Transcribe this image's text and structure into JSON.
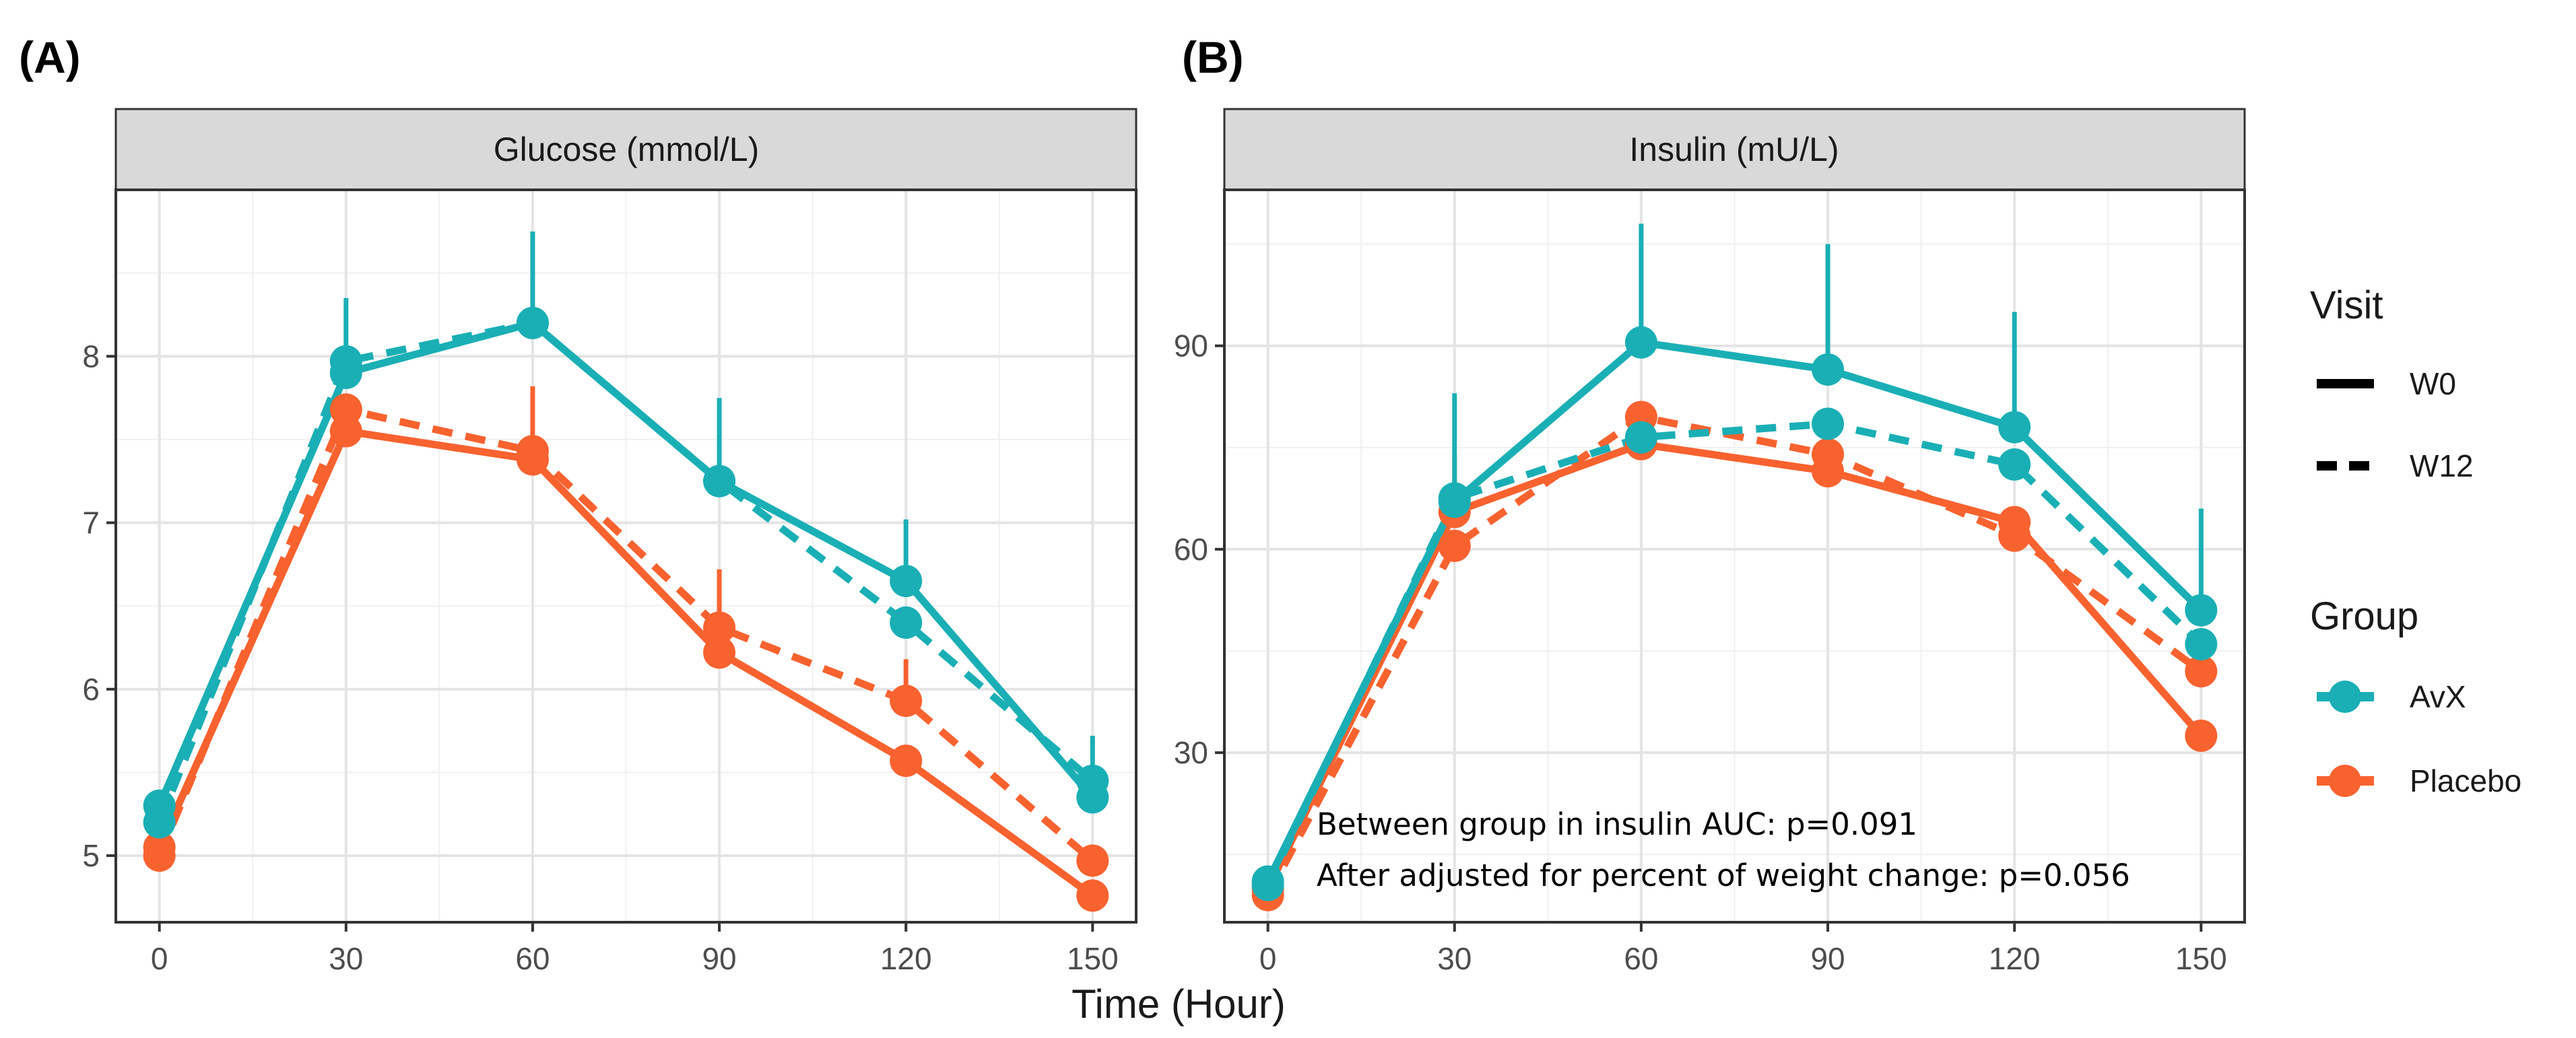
{
  "chart_data": [
    {
      "panel_label": "(A)",
      "type": "line",
      "title": "Glucose (mmol/L)",
      "x": [
        0,
        30,
        60,
        90,
        120,
        150
      ],
      "xticks": [
        "0",
        "30",
        "60",
        "90",
        "120",
        "150"
      ],
      "xlim": [
        -7,
        157
      ],
      "ylim": [
        4.6,
        9.0
      ],
      "yticks": [
        5,
        6,
        7,
        8
      ],
      "ytick_labels": [
        "5",
        "6",
        "7",
        "8"
      ],
      "grid": true,
      "series": [
        {
          "name": "AvX W0",
          "group": "AvX",
          "visit": "W0",
          "values": [
            5.3,
            7.9,
            8.2,
            7.25,
            6.65,
            5.35
          ],
          "err_upper": [
            null,
            8.35,
            8.75,
            7.75,
            7.02,
            5.72
          ]
        },
        {
          "name": "AvX W12",
          "group": "AvX",
          "visit": "W12",
          "values": [
            5.2,
            7.97,
            8.2,
            7.25,
            6.4,
            5.45
          ],
          "err_upper": [
            null,
            null,
            null,
            null,
            null,
            null
          ]
        },
        {
          "name": "Placebo W0",
          "group": "Placebo",
          "visit": "W0",
          "values": [
            5.05,
            7.55,
            7.38,
            6.22,
            5.57,
            4.76
          ],
          "err_upper": [
            null,
            null,
            7.82,
            null,
            null,
            null
          ]
        },
        {
          "name": "Placebo W12",
          "group": "Placebo",
          "visit": "W12",
          "values": [
            5.0,
            7.68,
            7.43,
            6.37,
            5.93,
            4.97
          ],
          "err_upper": [
            null,
            null,
            null,
            6.72,
            6.18,
            null
          ]
        }
      ]
    },
    {
      "panel_label": "(B)",
      "type": "line",
      "title": "Insulin (mU/L)",
      "x": [
        0,
        30,
        60,
        90,
        120,
        150
      ],
      "xticks": [
        "0",
        "30",
        "60",
        "90",
        "120",
        "150"
      ],
      "xlim": [
        -7,
        157
      ],
      "ylim": [
        5,
        113
      ],
      "yticks": [
        30,
        60,
        90
      ],
      "ytick_labels": [
        "30",
        "60",
        "90"
      ],
      "grid": true,
      "annotations": [
        "Between group in insulin AUC: p=0.091",
        "After adjusted for percent of weight change: p=0.056"
      ],
      "series": [
        {
          "name": "AvX W0",
          "group": "AvX",
          "visit": "W0",
          "values": [
            11,
            67,
            90.5,
            86.5,
            78,
            51
          ],
          "err_upper": [
            null,
            83,
            108,
            105,
            95,
            66
          ]
        },
        {
          "name": "AvX W12",
          "group": "AvX",
          "visit": "W12",
          "values": [
            10.5,
            67.5,
            76.5,
            78.5,
            72.5,
            46
          ],
          "err_upper": [
            null,
            null,
            null,
            null,
            null,
            null
          ]
        },
        {
          "name": "Placebo W0",
          "group": "Placebo",
          "visit": "W0",
          "values": [
            10,
            65.5,
            75.5,
            71.5,
            64,
            32.5
          ],
          "err_upper": [
            null,
            74,
            null,
            null,
            null,
            null
          ]
        },
        {
          "name": "Placebo W12",
          "group": "Placebo",
          "visit": "W12",
          "values": [
            9,
            60.5,
            79.5,
            74,
            62,
            42
          ],
          "err_upper": [
            null,
            null,
            null,
            null,
            null,
            null
          ]
        }
      ]
    }
  ],
  "xlabel": "Time (Hour)",
  "legend": {
    "visit_title": "Visit",
    "visit_items": [
      {
        "label": "W0",
        "style": "solid"
      },
      {
        "label": "W12",
        "style": "dashed"
      }
    ],
    "group_title": "Group",
    "group_items": [
      {
        "label": "AvX",
        "color": "#1AAFB5"
      },
      {
        "label": "Placebo",
        "color": "#F8622F"
      }
    ]
  }
}
